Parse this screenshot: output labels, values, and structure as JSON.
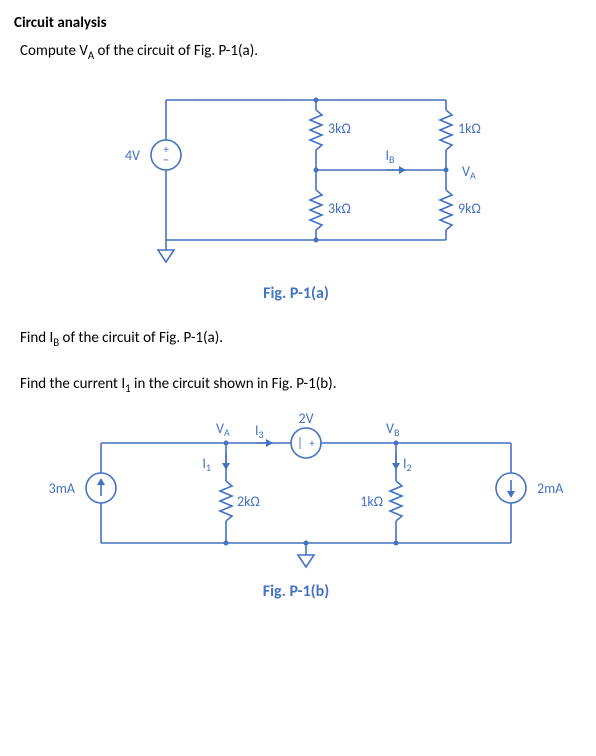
{
  "heading": "Circuit analysis",
  "p1_line1_html": "Compute V<sub class='sub'>A</sub> of the circuit of Fig. P-1(a).",
  "p1_fig": "Fig. P-1(a)",
  "p2_line_html": "Find I<sub class='sub'>B</sub> of the circuit of Fig. P-1(a).",
  "p3_line_html": "Find the current I<sub class='sub'>1</sub> in the circuit shown in Fig. P-1(b).",
  "p3_fig": "Fig. P-1(b)",
  "circuit_a": {
    "type": "circuit-diagram",
    "stroke_color": "#4472c4",
    "stroke_width": 1.6,
    "background_color": "#ffffff",
    "text_color": "#4472c4",
    "text_fontsize": 14,
    "sub_fontsize": 10,
    "elements": {
      "source": {
        "kind": "voltage-source",
        "label": "4V",
        "polarity": "+top"
      },
      "R_top_mid": {
        "kind": "resistor",
        "label": "3kΩ",
        "orientation": "vertical"
      },
      "R_bot_mid": {
        "kind": "resistor",
        "label": "3kΩ",
        "orientation": "vertical"
      },
      "R_top_right": {
        "kind": "resistor",
        "label": "1kΩ",
        "orientation": "vertical"
      },
      "R_bot_right": {
        "kind": "resistor",
        "label": "9kΩ",
        "orientation": "vertical"
      },
      "IB_arrow": {
        "kind": "current-arrow",
        "label": "I_B",
        "direction": "right"
      },
      "VA_node": {
        "kind": "node-label",
        "label": "V_A"
      },
      "ground": {
        "kind": "ground"
      }
    }
  },
  "circuit_b": {
    "type": "circuit-diagram",
    "stroke_color": "#4472c4",
    "stroke_width": 1.6,
    "background_color": "#ffffff",
    "text_color": "#4472c4",
    "text_fontsize": 14,
    "sub_fontsize": 10,
    "elements": {
      "I_src_left": {
        "kind": "current-source",
        "label": "3mA",
        "direction": "up"
      },
      "I_src_right": {
        "kind": "current-source",
        "label": "2mA",
        "direction": "down"
      },
      "R_left": {
        "kind": "resistor",
        "label": "2kΩ",
        "orientation": "vertical"
      },
      "R_right": {
        "kind": "resistor",
        "label": "1kΩ",
        "orientation": "vertical"
      },
      "V_src_mid": {
        "kind": "voltage-source-inline",
        "label": "2V",
        "polarity": "|+"
      },
      "VA_node": {
        "kind": "node-label",
        "label": "V_A"
      },
      "VB_node": {
        "kind": "node-label",
        "label": "V_B"
      },
      "I1_arrow": {
        "kind": "current-arrow",
        "label": "I_1",
        "direction": "down"
      },
      "I2_arrow": {
        "kind": "current-arrow",
        "label": "I_2",
        "direction": "down"
      },
      "I3_arrow": {
        "kind": "current-arrow",
        "label": "I_3",
        "direction": "right"
      },
      "ground": {
        "kind": "ground"
      }
    }
  }
}
